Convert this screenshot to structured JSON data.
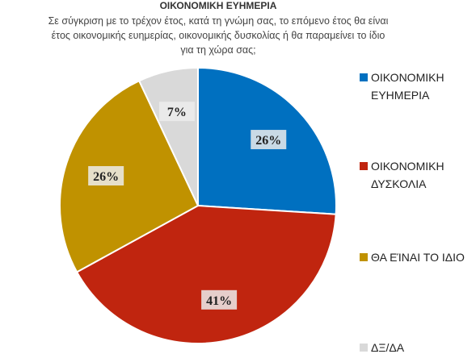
{
  "chart_data": {
    "type": "pie",
    "title": "ΟΙΚΟΝΟΜΙΚΗ ΕΥΗΜΕΡΙΑ",
    "subtitle": "Σε σύγκριση με το τρέχον έτος, κατά τη γνώμη σας, το επόμενο έτος θα είναι έτος οικονομικής ευημερίας, οικονομικής δυσκολίας ή θα παραμείνει το ίδιο για τη χώρα σας;",
    "categories": [
      "ΟΙΚΟΝΟΜΙΚΗ ΕΥΗΜΕΡΙΑ",
      "ΟΙΚΟΝΟΜΙΚΗ ΔΥΣΚΟΛΙΑ",
      "ΘΑ ΕΊΝΑΙ ΤΟ ΙΔΙΟ",
      "ΔΞ/ΔΑ"
    ],
    "values": [
      26,
      41,
      26,
      7
    ],
    "value_labels": [
      "26%",
      "41%",
      "26%",
      "7%"
    ],
    "colors": [
      "#0070c0",
      "#c0250f",
      "#c09200",
      "#d9d9d9"
    ],
    "legend": "right"
  }
}
